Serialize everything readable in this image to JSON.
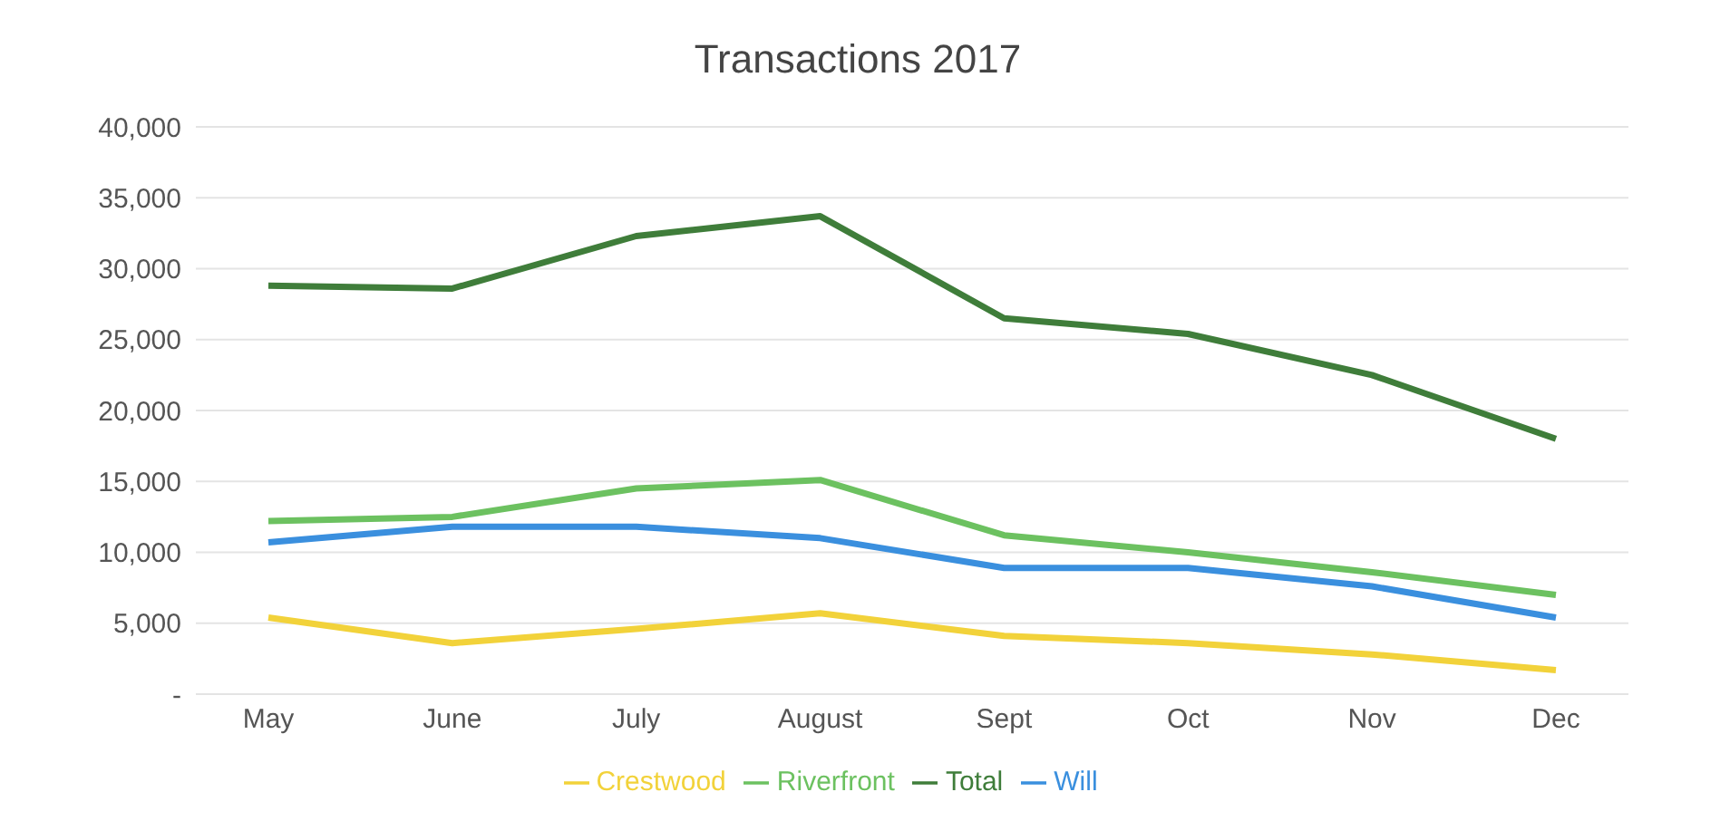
{
  "chart_data": {
    "type": "line",
    "title": "Transactions 2017",
    "categories": [
      "May",
      "June",
      "July",
      "August",
      "Sept",
      "Oct",
      "Nov",
      "Dec"
    ],
    "series": [
      {
        "name": "Riverfront",
        "color": "#6cc160",
        "values": [
          12200,
          12500,
          14500,
          15100,
          11200,
          10000,
          8600,
          7000
        ]
      },
      {
        "name": "Will",
        "color": "#3a8fde",
        "values": [
          10700,
          11800,
          11800,
          11000,
          8900,
          8900,
          7600,
          5400
        ]
      },
      {
        "name": "Crestwood",
        "color": "#f2d23a",
        "values": [
          5400,
          3600,
          4600,
          5700,
          4100,
          3600,
          2800,
          1700
        ]
      },
      {
        "name": "Total",
        "color": "#3f7d3a",
        "values": [
          28800,
          28600,
          32300,
          33700,
          26500,
          25400,
          22500,
          18000
        ]
      }
    ],
    "ylim": [
      0,
      40000
    ],
    "yticks": [
      {
        "value": 0,
        "label": "-"
      },
      {
        "value": 5000,
        "label": "5,000"
      },
      {
        "value": 10000,
        "label": "10,000"
      },
      {
        "value": 15000,
        "label": "15,000"
      },
      {
        "value": 20000,
        "label": "20,000"
      },
      {
        "value": 25000,
        "label": "25,000"
      },
      {
        "value": 30000,
        "label": "30,000"
      },
      {
        "value": 35000,
        "label": "35,000"
      },
      {
        "value": 40000,
        "label": "40,000"
      }
    ],
    "grid": "y",
    "legend": "bottom",
    "marker": "none",
    "line_style": "solid"
  }
}
